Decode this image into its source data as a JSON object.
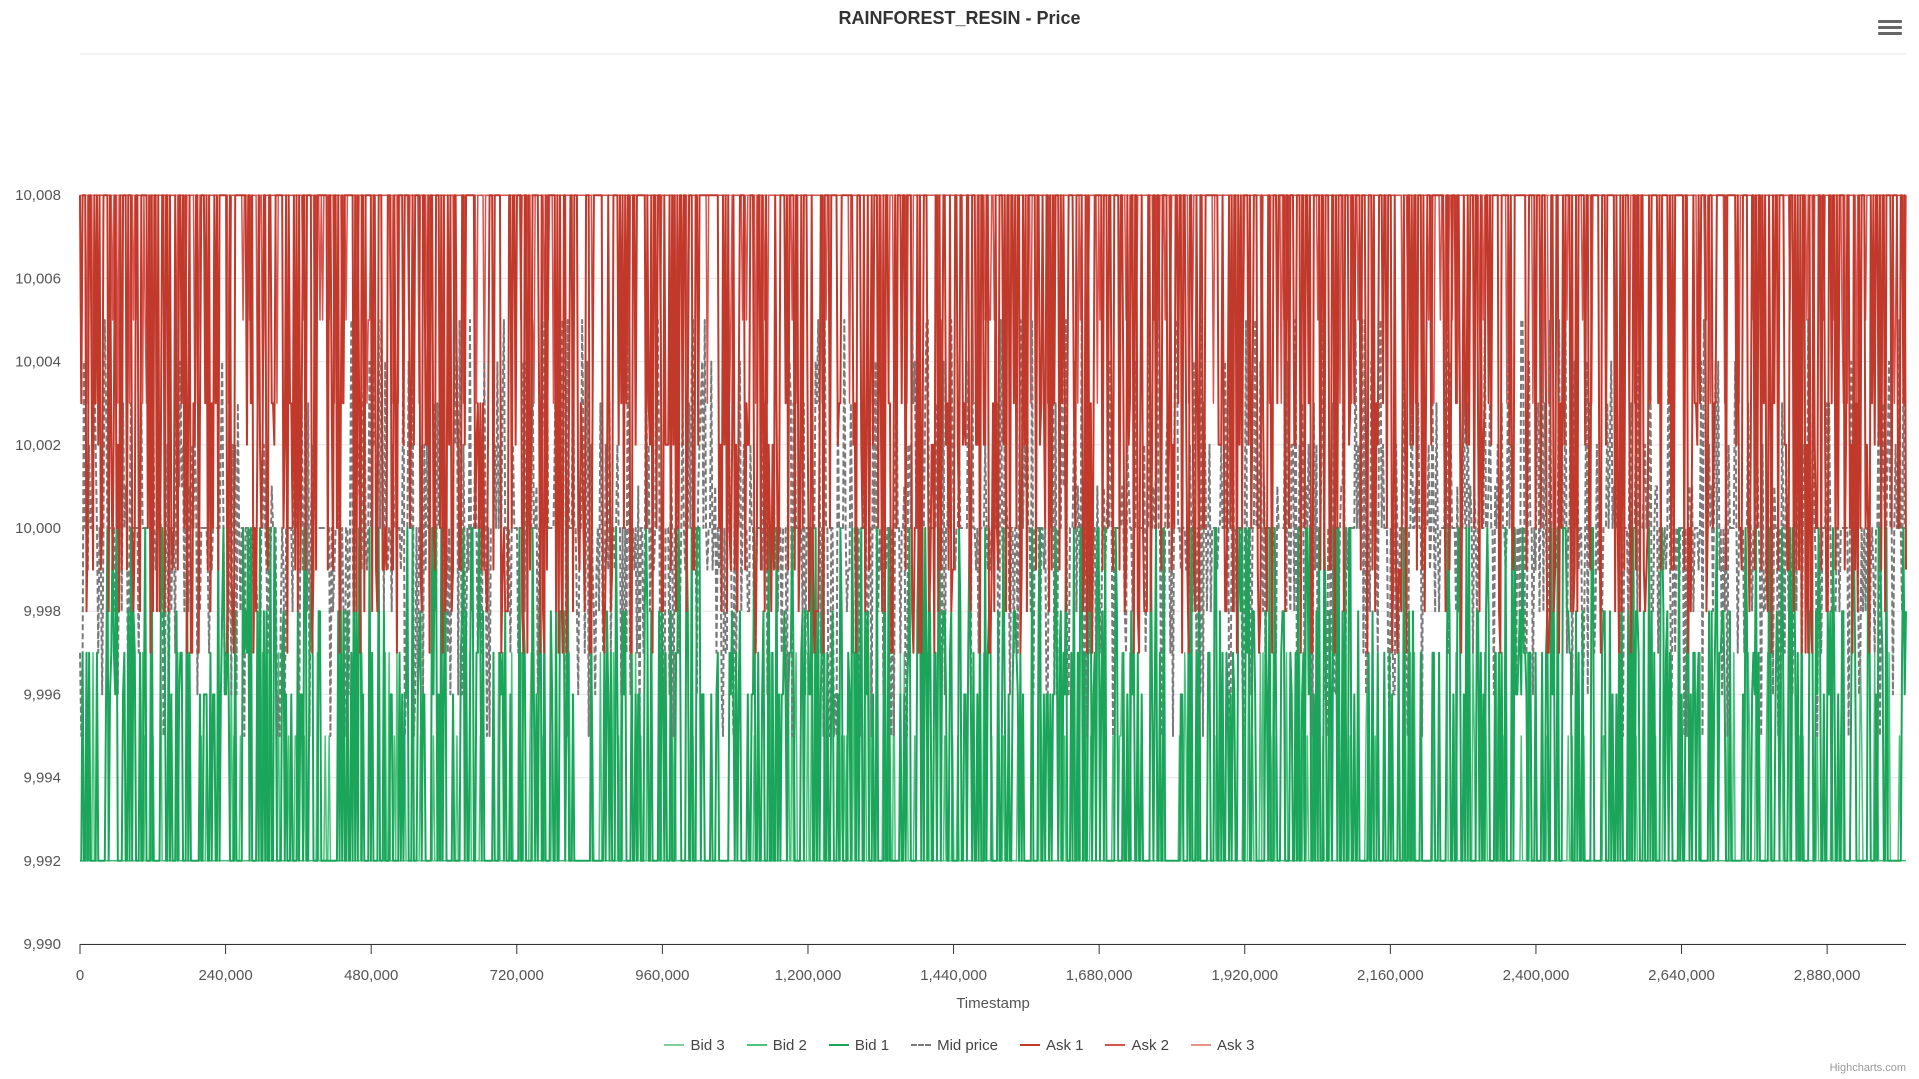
{
  "chart_data": {
    "type": "line",
    "title": "RAINFOREST_RESIN - Price",
    "xlabel": "Timestamp",
    "ylabel": "",
    "xlim": [
      0,
      3010000
    ],
    "ylim": [
      9990,
      10010
    ],
    "x_ticks": [
      0,
      240000,
      480000,
      720000,
      960000,
      1200000,
      1440000,
      1680000,
      1920000,
      2160000,
      2400000,
      2640000,
      2880000
    ],
    "x_tick_labels": [
      "0",
      "240,000",
      "480,000",
      "720,000",
      "960,000",
      "1,200,000",
      "1,440,000",
      "1,680,000",
      "1,920,000",
      "2,160,000",
      "2,400,000",
      "2,640,000",
      "2,880,000"
    ],
    "y_ticks": [
      9990,
      9992,
      9994,
      9996,
      9998,
      10000,
      10002,
      10004,
      10006,
      10008
    ],
    "y_tick_labels": [
      "9,990",
      "9,992",
      "9,994",
      "9,996",
      "9,998",
      "10,000",
      "10,002",
      "10,004",
      "10,006",
      "10,008"
    ],
    "grid": true,
    "legend_position": "bottom-center",
    "series": [
      {
        "name": "Bid 3",
        "color": "#7fcf9d",
        "dash": "solid",
        "width": 1.5,
        "base": 9992,
        "levels": [
          9992
        ]
      },
      {
        "name": "Bid 2",
        "color": "#4cc27f",
        "dash": "solid",
        "width": 1.5,
        "base": 9992,
        "levels": [
          9995,
          9997
        ]
      },
      {
        "name": "Bid 1",
        "color": "#1aa55a",
        "dash": "solid",
        "width": 2,
        "base": 9992,
        "levels": [
          9996,
          9997,
          9998,
          10000
        ]
      },
      {
        "name": "Mid price",
        "color": "#7a7a7a",
        "dash": "dashed",
        "width": 2,
        "base": 10000,
        "levels": [
          9995,
          9996,
          9997,
          9998,
          9999,
          10001,
          10002,
          10003,
          10004,
          10005
        ]
      },
      {
        "name": "Ask 1",
        "color": "#c0392b",
        "dash": "solid",
        "width": 2,
        "base": 10008,
        "levels": [
          9997,
          9998,
          9999,
          10000,
          10002,
          10003
        ]
      },
      {
        "name": "Ask 2",
        "color": "#d9534f",
        "dash": "solid",
        "width": 1.5,
        "base": 10008,
        "levels": [
          10003,
          10005
        ]
      },
      {
        "name": "Ask 3",
        "color": "#e8948a",
        "dash": "solid",
        "width": 1.5,
        "base": 10008,
        "levels": [
          10008
        ]
      }
    ]
  },
  "ui": {
    "menu_icon": "hamburger-menu-icon",
    "credits": "Highcharts.com"
  }
}
